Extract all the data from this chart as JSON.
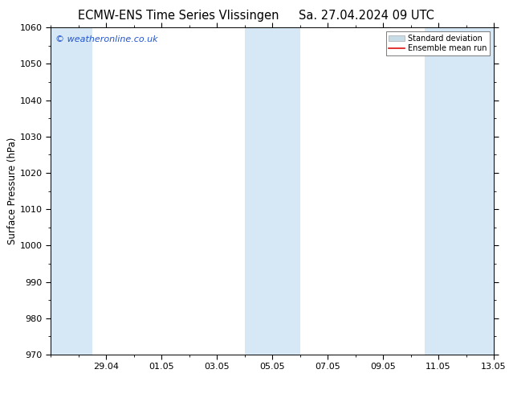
{
  "title_left": "ECMW-ENS Time Series Vlissingen",
  "title_right": "Sa. 27.04.2024 09 UTC",
  "ylabel": "Surface Pressure (hPa)",
  "ylim": [
    970,
    1060
  ],
  "yticks": [
    970,
    980,
    990,
    1000,
    1010,
    1020,
    1030,
    1040,
    1050,
    1060
  ],
  "xlim": [
    0,
    16
  ],
  "xtick_labels": [
    "29.04",
    "01.05",
    "03.05",
    "05.05",
    "07.05",
    "09.05",
    "11.05",
    "13.05"
  ],
  "xtick_positions": [
    2,
    4,
    6,
    8,
    10,
    12,
    14,
    16
  ],
  "shaded_bands": [
    {
      "x_start": 0.0,
      "x_end": 1.5,
      "color": "#d6e8f5"
    },
    {
      "x_start": 7.0,
      "x_end": 9.0,
      "color": "#d6e8f5"
    },
    {
      "x_start": 13.5,
      "x_end": 16.0,
      "color": "#d6e8f5"
    }
  ],
  "watermark_text": "© weatheronline.co.uk",
  "watermark_color": "#2255cc",
  "legend_std_color": "#c8dce8",
  "legend_mean_color": "#dd1111",
  "bg_color": "#ffffff",
  "plot_bg_color": "#ffffff",
  "title_fontsize": 10.5,
  "axis_label_fontsize": 8.5,
  "tick_fontsize": 8,
  "watermark_fontsize": 8
}
